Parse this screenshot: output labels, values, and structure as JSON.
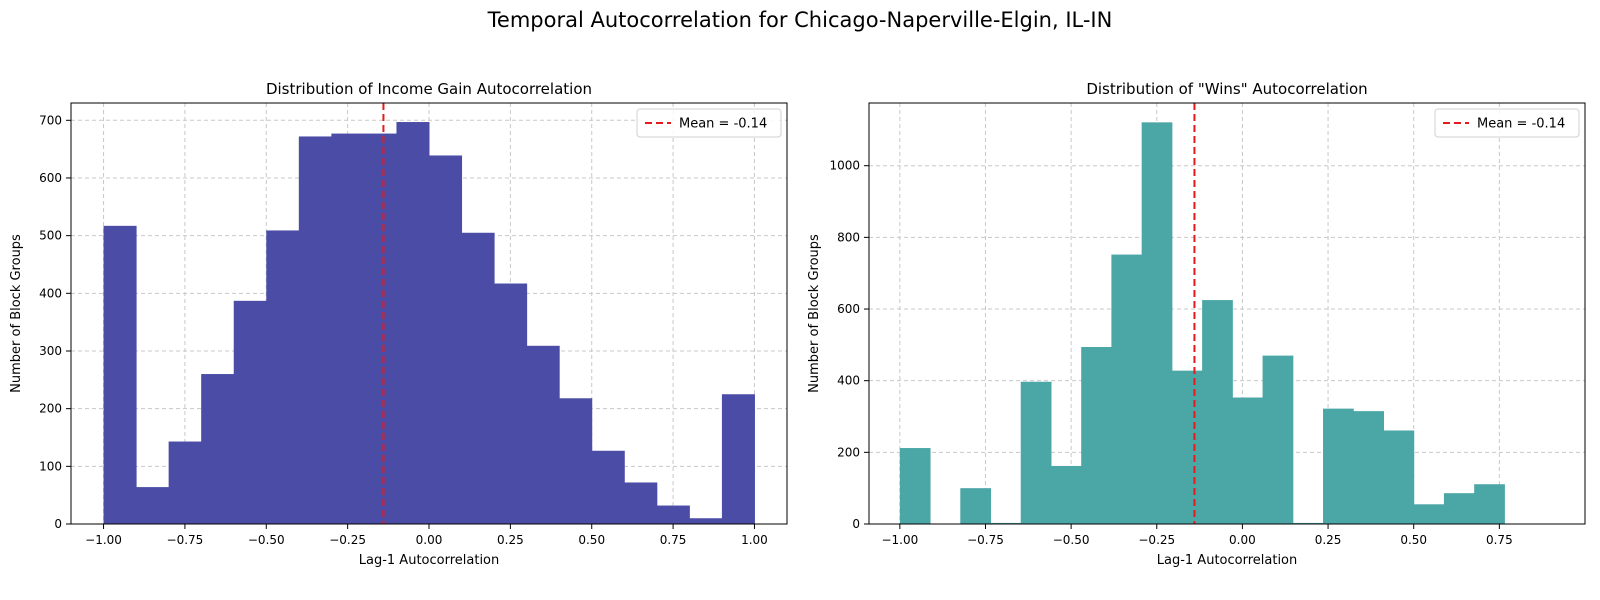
{
  "suptitle": "Temporal Autocorrelation for Chicago-Naperville-Elgin, IL-IN",
  "chart_data": [
    {
      "type": "bar",
      "subtype": "histogram",
      "title": "Distribution of Income Gain Autocorrelation",
      "xlabel": "Lag-1 Autocorrelation",
      "ylabel": "Number of Block Groups",
      "color": "#4b4ca6",
      "xlim": [
        -1.1,
        1.1
      ],
      "ylim": [
        0,
        730
      ],
      "xticks": [
        -1.0,
        -0.75,
        -0.5,
        -0.25,
        0.0,
        0.25,
        0.5,
        0.75,
        1.0
      ],
      "xtick_labels": [
        "−1.00",
        "−0.75",
        "−0.50",
        "−0.25",
        "0.00",
        "0.25",
        "0.50",
        "0.75",
        "1.00"
      ],
      "yticks": [
        0,
        100,
        200,
        300,
        400,
        500,
        600,
        700
      ],
      "bin_edges": [
        -1.0,
        -0.9,
        -0.8,
        -0.7,
        -0.6,
        -0.5,
        -0.4,
        -0.3,
        -0.2,
        -0.1,
        0.0,
        0.1,
        0.2,
        0.3,
        0.4,
        0.5,
        0.6,
        0.7,
        0.8,
        0.9,
        1.0
      ],
      "values": [
        517,
        64,
        143,
        260,
        387,
        509,
        672,
        677,
        677,
        697,
        639,
        505,
        417,
        309,
        218,
        127,
        72,
        32,
        10,
        225
      ],
      "mean_line": {
        "x": -0.14,
        "label": "Mean = -0.14",
        "color": "#e41a1c"
      },
      "legend_position": "top-right",
      "grid": true
    },
    {
      "type": "bar",
      "subtype": "histogram",
      "title": "Distribution of \"Wins\" Autocorrelation",
      "xlabel": "Lag-1 Autocorrelation",
      "ylabel": "Number of Block Groups",
      "color": "#4ba6a6",
      "xlim": [
        -1.09,
        1.0
      ],
      "ylim": [
        0,
        1175
      ],
      "xticks": [
        -1.0,
        -0.75,
        -0.5,
        -0.25,
        0.0,
        0.25,
        0.5,
        0.75
      ],
      "xtick_labels": [
        "−1.00",
        "−0.75",
        "−0.50",
        "−0.25",
        "0.00",
        "0.25",
        "0.50",
        "0.75"
      ],
      "yticks": [
        0,
        200,
        400,
        600,
        800,
        1000
      ],
      "bin_edges": [
        -1.0,
        -0.9118,
        -0.8235,
        -0.7353,
        -0.6471,
        -0.5588,
        -0.4706,
        -0.3824,
        -0.2941,
        -0.2059,
        -0.1176,
        -0.0294,
        0.0588,
        0.1471,
        0.2353,
        0.3235,
        0.4118,
        0.5,
        0.5882,
        0.6765,
        0.7647
      ],
      "values": [
        212,
        0,
        100,
        3,
        397,
        162,
        494,
        752,
        1121,
        428,
        625,
        353,
        470,
        3,
        322,
        315,
        261,
        55,
        86,
        111
      ],
      "mean_line": {
        "x": -0.14,
        "label": "Mean = -0.14",
        "color": "#e41a1c"
      },
      "legend_position": "top-right",
      "grid": true
    }
  ]
}
